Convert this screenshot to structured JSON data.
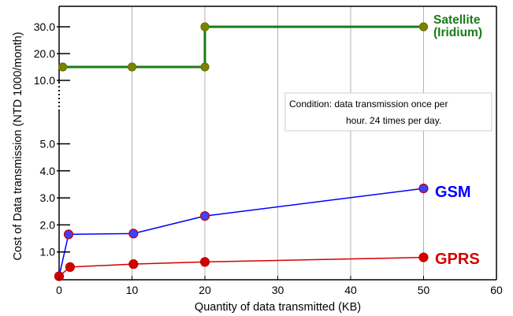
{
  "chart_data": {
    "type": "line",
    "xlabel": "Quantity of data transmitted (KB)",
    "ylabel": "Cost of Data transmission (NTD 1000/month)",
    "x_ticks": [
      "0",
      "10",
      "20",
      "30",
      "40",
      "50",
      "60"
    ],
    "xlim": [
      0,
      60
    ],
    "y_ticks": [
      "1.0",
      "2.0",
      "3.0",
      "4.0",
      "5.0",
      "10.0",
      "20.0",
      "30.0"
    ],
    "y_axis_break": "dotted segment between 5.0 and 10.0",
    "grid": true,
    "annotation": [
      "Condition: data transmission once per",
      "hour. 24 times per day."
    ],
    "series": [
      {
        "name": "Satellite (Iridium)",
        "label_lines": [
          "Satellite",
          "(Iridium)"
        ],
        "color": "#1a7a1a",
        "marker_color": "#808000",
        "step": true,
        "x": [
          0.5,
          10,
          20,
          20,
          50
        ],
        "y": [
          15,
          15,
          15,
          30,
          30
        ]
      },
      {
        "name": "GSM",
        "label_lines": [
          "GSM"
        ],
        "color": "#0000ff",
        "marker_color": "#4040ff",
        "step": false,
        "x": [
          0,
          1.3,
          10.2,
          20,
          50
        ],
        "y": [
          0.1,
          1.65,
          1.68,
          2.33,
          3.35
        ]
      },
      {
        "name": "GPRS",
        "label_lines": [
          "GPRS"
        ],
        "color": "#d40000",
        "marker_color": "#d40000",
        "step": false,
        "x": [
          0,
          1.5,
          10.2,
          20,
          50
        ],
        "y": [
          0.1,
          0.44,
          0.55,
          0.63,
          0.8
        ]
      }
    ]
  }
}
